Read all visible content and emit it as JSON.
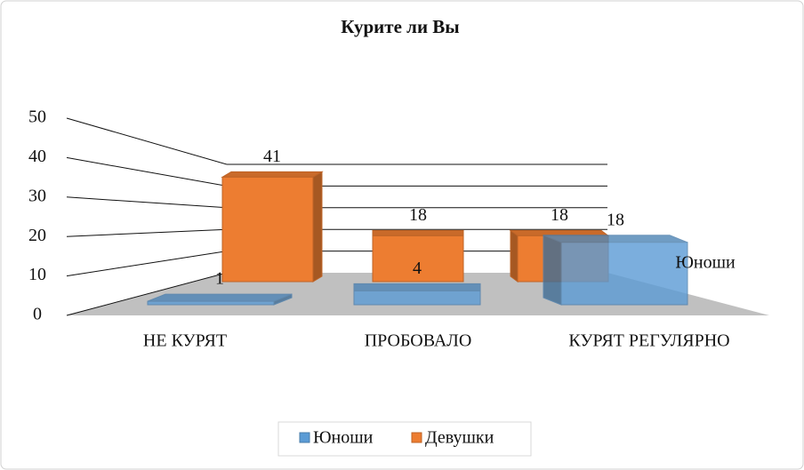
{
  "chart_data": {
    "type": "bar3d",
    "title": "Курите ли Вы",
    "categories": [
      "НЕ КУРЯТ",
      "ПРОБОВАЛО",
      "КУРЯТ РЕГУЛЯРНО"
    ],
    "series": [
      {
        "name": "Юноши",
        "color": "#5b9bd5",
        "values": [
          1,
          4,
          18
        ]
      },
      {
        "name": "Девушки",
        "color": "#ed7d31",
        "values": [
          41,
          18,
          18
        ]
      }
    ],
    "ylim": [
      0,
      50
    ],
    "yticks": [
      0,
      10,
      20,
      30,
      40,
      50
    ],
    "grid": true,
    "legend": "bottom"
  }
}
